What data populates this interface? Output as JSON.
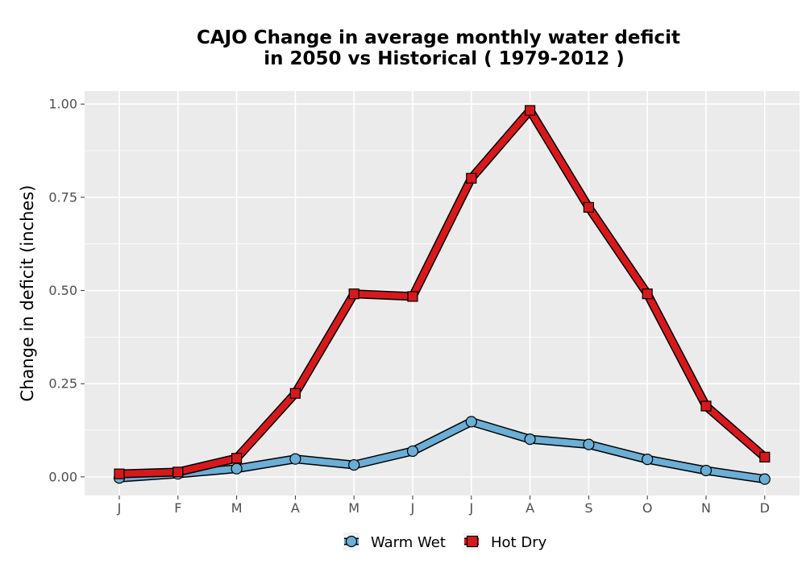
{
  "chart_data": {
    "type": "line",
    "title_line1": "CAJO  Change in average monthly water deficit",
    "title_line2": "in 2050 vs Historical ( 1979-2012 )",
    "xlabel": "",
    "ylabel": "Change in deficit (inches)",
    "categories": [
      "J",
      "F",
      "M",
      "A",
      "M",
      "J",
      "J",
      "A",
      "S",
      "O",
      "N",
      "D"
    ],
    "yticks": [
      "0.00",
      "0.25",
      "0.50",
      "0.75",
      "1.00"
    ],
    "ytick_values": [
      0,
      0.25,
      0.5,
      0.75,
      1.0
    ],
    "ylim": [
      -0.05,
      1.035
    ],
    "grid": true,
    "legend_position": "bottom",
    "series": [
      {
        "name": "Warm Wet",
        "color": "#6baed6",
        "marker": "circle",
        "values": [
          -0.003,
          0.008,
          0.022,
          0.048,
          0.032,
          0.069,
          0.148,
          0.101,
          0.087,
          0.047,
          0.017,
          -0.006
        ]
      },
      {
        "name": "Hot Dry",
        "color": "#d7191c",
        "marker": "square",
        "values": [
          0.008,
          0.013,
          0.05,
          0.224,
          0.491,
          0.484,
          0.801,
          0.983,
          0.723,
          0.491,
          0.19,
          0.053
        ]
      }
    ]
  }
}
